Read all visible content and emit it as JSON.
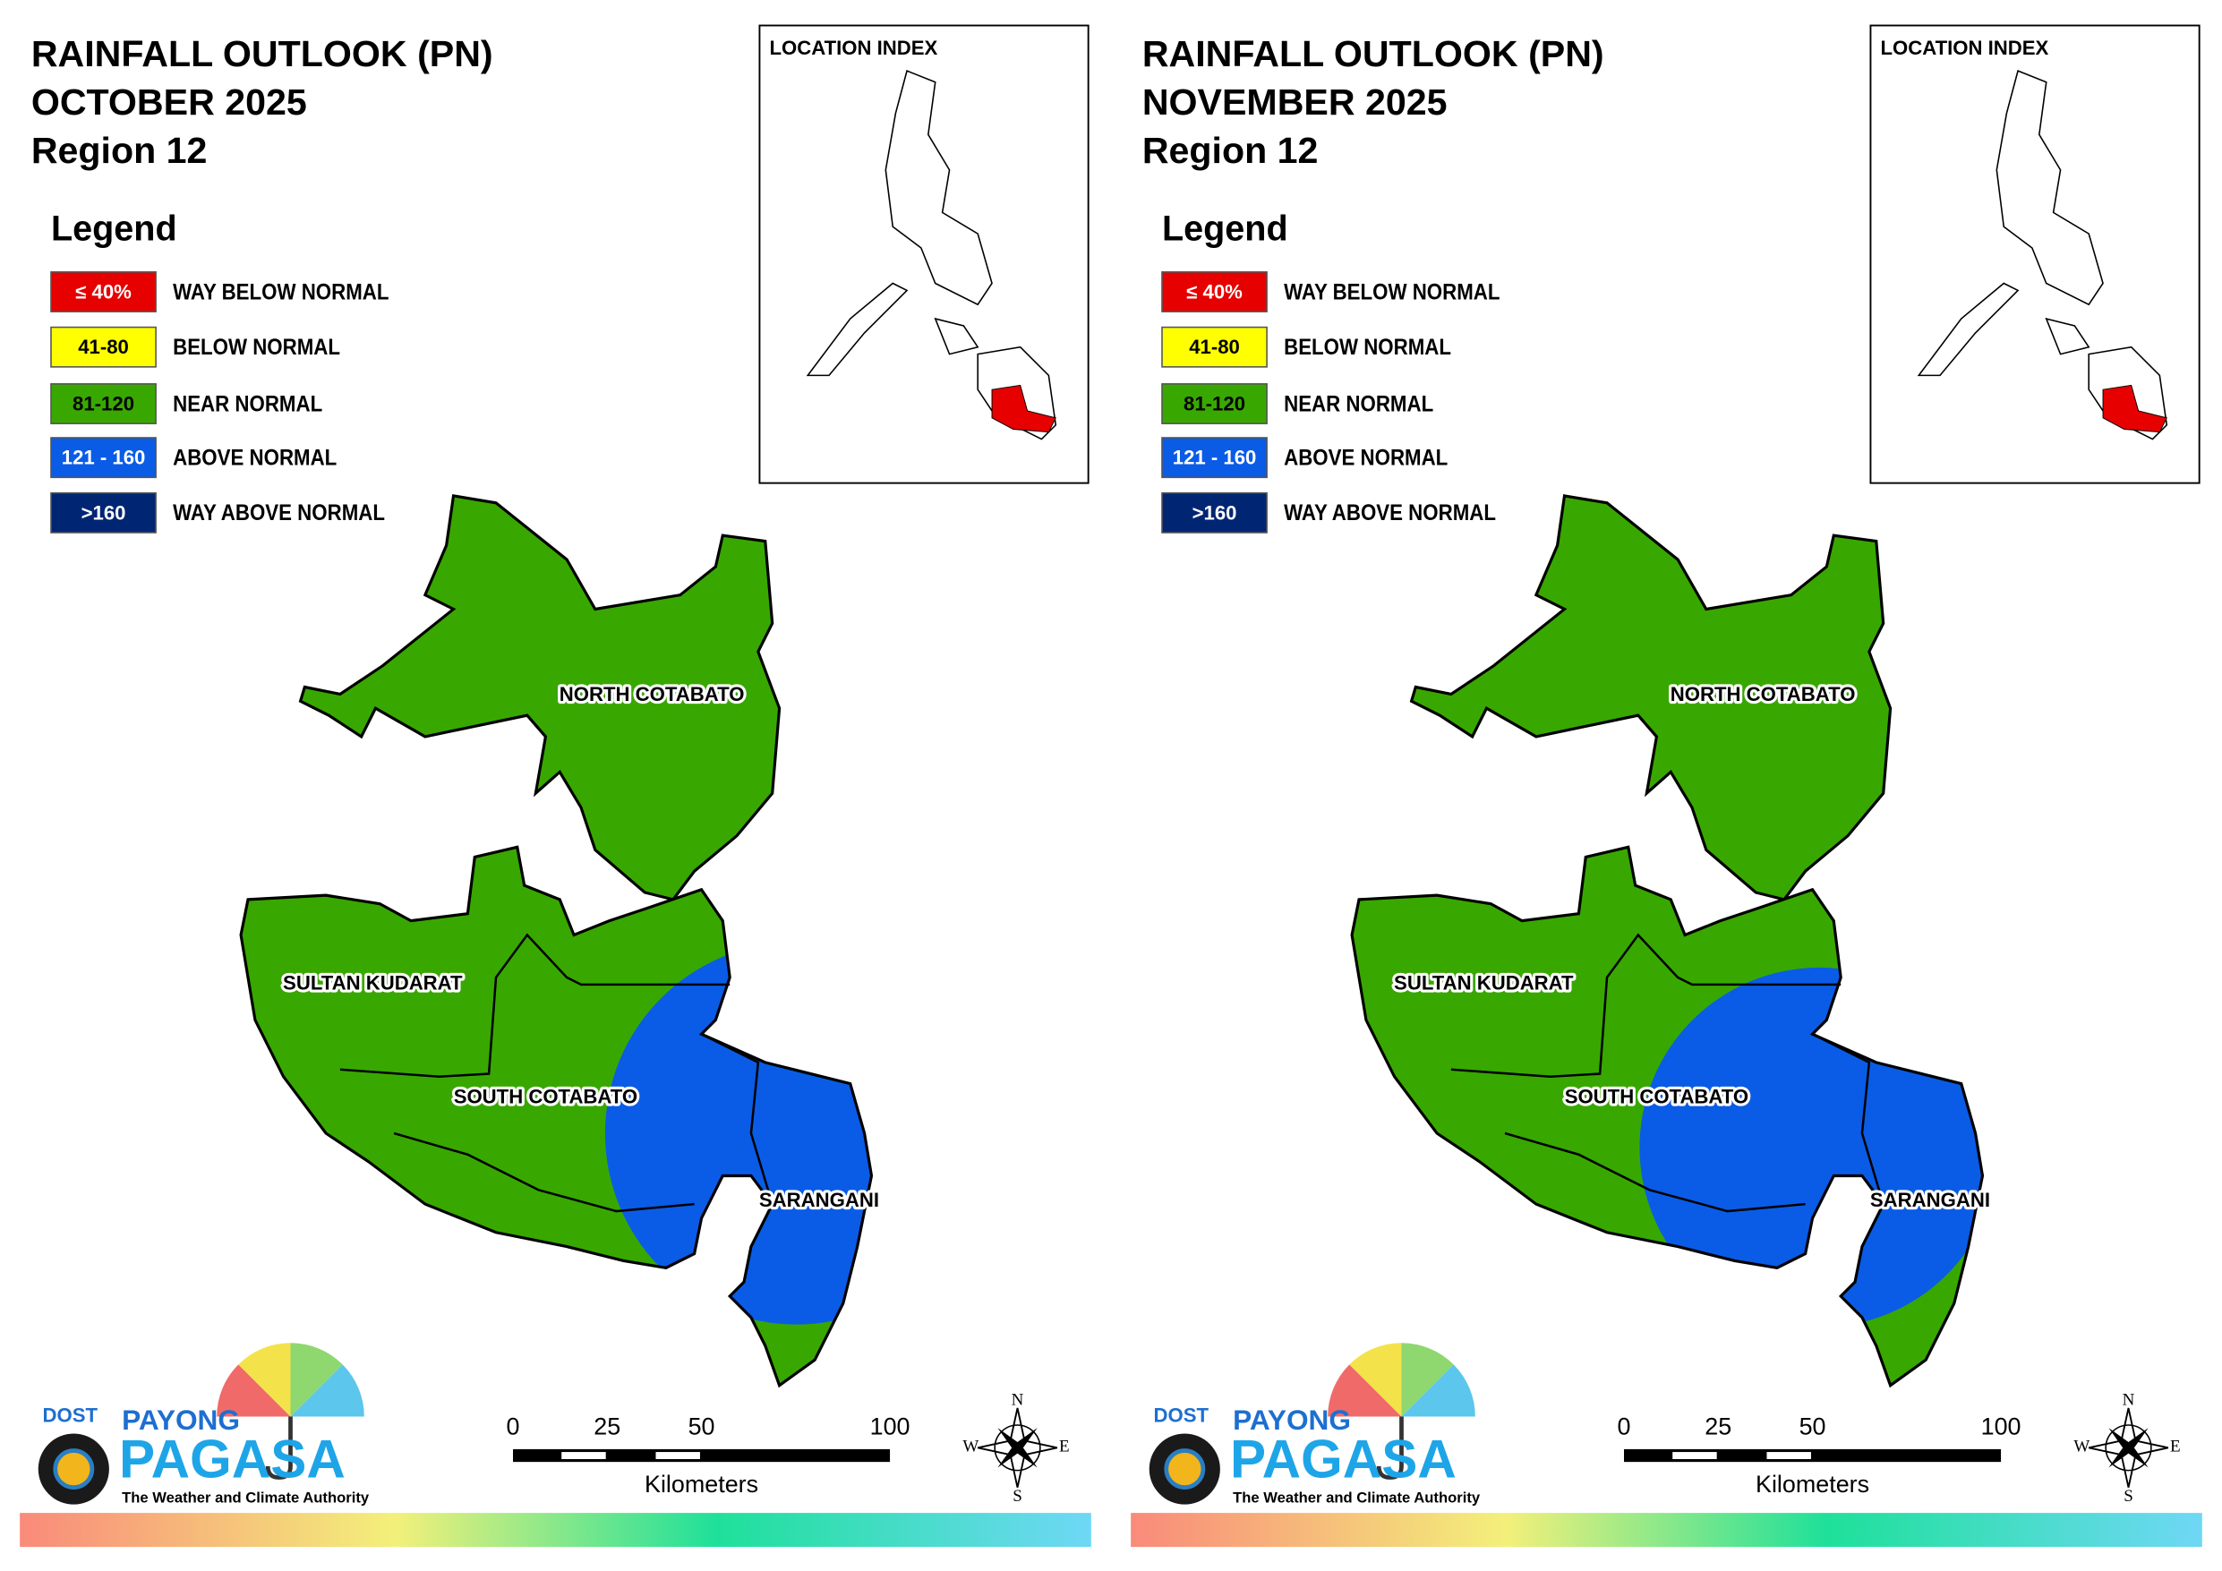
{
  "panels": [
    {
      "title_lines": [
        "RAINFALL OUTLOOK (PN)",
        "OCTOBER 2025",
        "Region 12"
      ],
      "location_index": "LOCATION INDEX",
      "legend": {
        "title": "Legend",
        "items": [
          {
            "swatch": "≤ 40%",
            "label": "WAY BELOW NORMAL",
            "color": "#e60000",
            "text_color": "#ffffff"
          },
          {
            "swatch": "41-80",
            "label": "BELOW NORMAL",
            "color": "#ffff00",
            "text_color": "#000000"
          },
          {
            "swatch": "81-120",
            "label": "NEAR NORMAL",
            "color": "#38a800",
            "text_color": "#000000"
          },
          {
            "swatch": "121 - 160",
            "label": "ABOVE NORMAL",
            "color": "#0a5ce6",
            "text_color": "#ffffff"
          },
          {
            "swatch": ">160",
            "label": "WAY ABOVE NORMAL",
            "color": "#002673",
            "text_color": "#ffffff"
          }
        ]
      },
      "provinces": [
        "NORTH COTABATO",
        "SULTAN KUDARAT",
        "SOUTH COTABATO",
        "SARANGANI"
      ],
      "scale": {
        "ticks": [
          0,
          25,
          50,
          100
        ],
        "unit": "Kilometers"
      },
      "compass": {
        "n": "N",
        "e": "E",
        "s": "S",
        "w": "W"
      },
      "logo": {
        "dost": "DOST",
        "payong": "PAYONG",
        "pagasa": "PAGASA",
        "tagline": "The Weather and Climate Authority"
      }
    },
    {
      "title_lines": [
        "RAINFALL OUTLOOK (PN)",
        "NOVEMBER 2025",
        "Region 12"
      ],
      "location_index": "LOCATION INDEX",
      "legend": {
        "title": "Legend",
        "items": [
          {
            "swatch": "≤ 40%",
            "label": "WAY BELOW NORMAL",
            "color": "#e60000",
            "text_color": "#ffffff"
          },
          {
            "swatch": "41-80",
            "label": "BELOW NORMAL",
            "color": "#ffff00",
            "text_color": "#000000"
          },
          {
            "swatch": "81-120",
            "label": "NEAR NORMAL",
            "color": "#38a800",
            "text_color": "#000000"
          },
          {
            "swatch": "121 - 160",
            "label": "ABOVE NORMAL",
            "color": "#0a5ce6",
            "text_color": "#ffffff"
          },
          {
            "swatch": ">160",
            "label": "WAY ABOVE NORMAL",
            "color": "#002673",
            "text_color": "#ffffff"
          }
        ]
      },
      "provinces": [
        "NORTH COTABATO",
        "SULTAN KUDARAT",
        "SOUTH COTABATO",
        "SARANGANI"
      ],
      "scale": {
        "ticks": [
          0,
          25,
          50,
          100
        ],
        "unit": "Kilometers"
      },
      "compass": {
        "n": "N",
        "e": "E",
        "s": "S",
        "w": "W"
      },
      "logo": {
        "dost": "DOST",
        "payong": "PAYONG",
        "pagasa": "PAGASA",
        "tagline": "The Weather and Climate Authority"
      }
    }
  ]
}
